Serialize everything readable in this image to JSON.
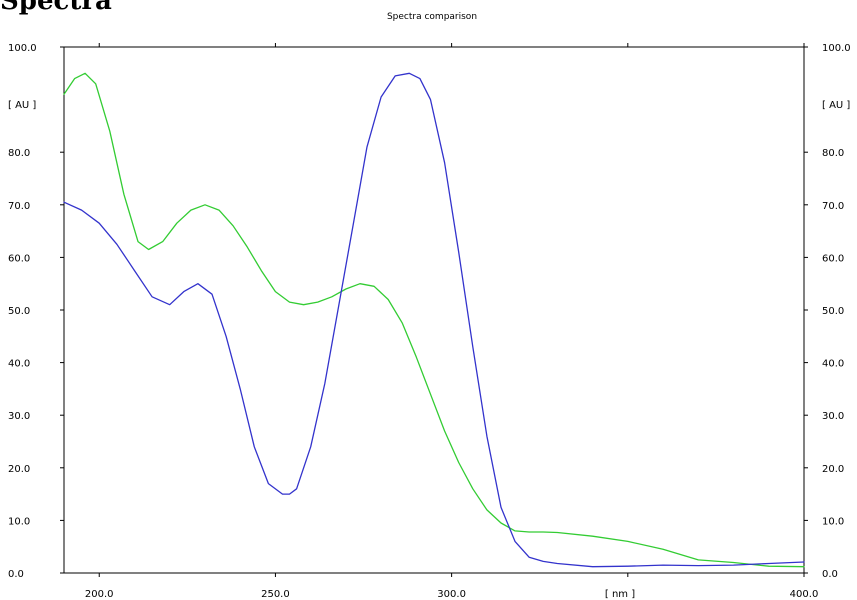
{
  "page": {
    "heading_fragment": "Spectra"
  },
  "chart_data": {
    "type": "line",
    "title": "Spectra comparison",
    "xlabel": "[ nm ]",
    "ylabel": "[ AU ]",
    "ylabel_right": "[ AU ]",
    "xlim": [
      190,
      400
    ],
    "ylim": [
      0,
      100
    ],
    "x_ticks": [
      {
        "value": 200,
        "label": "200.0"
      },
      {
        "value": 250,
        "label": "250.0"
      },
      {
        "value": 300,
        "label": "300.0"
      },
      {
        "value": 400,
        "label": "400.0"
      }
    ],
    "y_ticks": [
      {
        "value": 0,
        "label": "0.0"
      },
      {
        "value": 10,
        "label": "10.0"
      },
      {
        "value": 20,
        "label": "20.0"
      },
      {
        "value": 30,
        "label": "30.0"
      },
      {
        "value": 40,
        "label": "40.0"
      },
      {
        "value": 50,
        "label": "50.0"
      },
      {
        "value": 60,
        "label": "60.0"
      },
      {
        "value": 70,
        "label": "70.0"
      },
      {
        "value": 80,
        "label": "80.0"
      },
      {
        "value": 100,
        "label": "100.0"
      }
    ],
    "x_minor_ticks": [
      350
    ],
    "grid": false,
    "series": [
      {
        "color": "#33cc33",
        "x": [
          190,
          193,
          196,
          199,
          203,
          207,
          211,
          214,
          218,
          222,
          226,
          230,
          234,
          238,
          242,
          246,
          250,
          254,
          258,
          262,
          266,
          270,
          274,
          278,
          282,
          286,
          290,
          294,
          298,
          302,
          306,
          310,
          314,
          318,
          322,
          326,
          330,
          340,
          350,
          360,
          370,
          380,
          390,
          400
        ],
        "y": [
          91,
          94,
          95,
          93,
          84,
          72,
          63,
          61.5,
          63,
          66.5,
          69,
          70,
          69,
          66,
          62,
          57.5,
          53.5,
          51.5,
          51,
          51.5,
          52.5,
          54,
          55,
          54.5,
          52,
          47.5,
          41,
          34,
          27,
          21,
          16,
          12,
          9.5,
          8,
          7.8,
          7.8,
          7.7,
          7,
          6,
          4.5,
          2.5,
          2,
          1.3,
          1.2
        ]
      },
      {
        "color": "#3333cc",
        "x": [
          190,
          195,
          200,
          205,
          210,
          215,
          220,
          224,
          228,
          232,
          236,
          240,
          244,
          248,
          252,
          254,
          256,
          260,
          264,
          268,
          272,
          276,
          280,
          284,
          288,
          291,
          294,
          298,
          302,
          306,
          310,
          314,
          318,
          322,
          326,
          330,
          340,
          350,
          360,
          370,
          380,
          390,
          400
        ],
        "y": [
          70.5,
          69,
          66.5,
          62.5,
          57.5,
          52.5,
          51,
          53.5,
          55,
          53,
          45,
          35,
          24,
          17,
          15,
          15,
          16,
          24,
          36,
          51,
          66,
          81,
          90.5,
          94.5,
          95,
          94,
          90,
          78,
          61,
          43,
          26,
          12.5,
          6,
          3,
          2.2,
          1.8,
          1.2,
          1.3,
          1.5,
          1.4,
          1.5,
          1.8,
          2.1
        ]
      }
    ]
  }
}
